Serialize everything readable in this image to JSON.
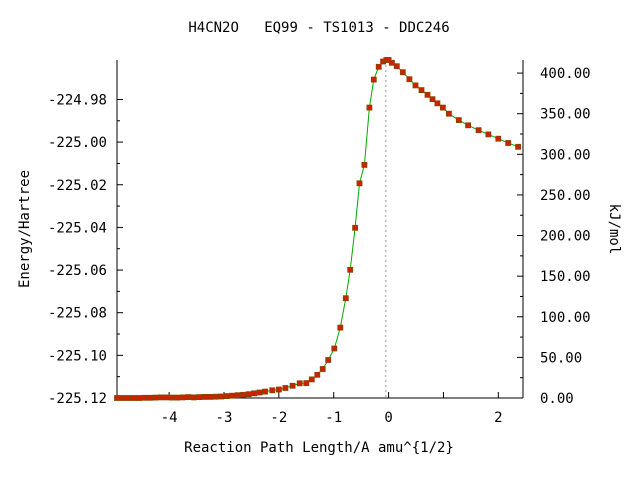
{
  "chart_data": {
    "type": "line",
    "title": "H4CN2O   EQ99 - TS1013 - DDC246",
    "xlabel": "Reaction Path Length/A amu^{1/2}",
    "ylabel": "Energy/Hartree",
    "y2label": "kJ/mol",
    "xlim": [
      -4.95,
      2.45
    ],
    "ylim": [
      -225.12,
      -224.9615
    ],
    "y2lim": [
      0,
      416.1
    ],
    "x_ticks": [
      -4,
      -3,
      -2,
      -1,
      0,
      2
    ],
    "x_tick_labels": [
      "-4",
      "-3",
      "-2",
      "-1",
      "0",
      "2"
    ],
    "x_minor_tick": 1,
    "y_ticks": [
      -224.98,
      -225.0,
      -225.02,
      -225.04,
      -225.06,
      -225.08,
      -225.1,
      -225.12
    ],
    "y_tick_labels": [
      "-224.98",
      "-225.00",
      "-225.02",
      "-225.04",
      "-225.06",
      "-225.08",
      "-225.10",
      "-225.12"
    ],
    "y2_ticks": [
      400,
      350,
      300,
      250,
      200,
      150,
      100,
      50,
      0
    ],
    "y2_tick_labels": [
      "400.00",
      "350.00",
      "300.00",
      "250.00",
      "200.00",
      "150.00",
      "100.00",
      "50.00",
      "0.00"
    ],
    "vline_x": -0.05,
    "grid": false,
    "line_color": "#00aa00",
    "marker_color": "#cc2200",
    "marker_edge": "#884400",
    "series": [
      {
        "x": [
          -4.95,
          -4.85,
          -4.75,
          -4.65,
          -4.55,
          -4.45,
          -4.35,
          -4.25,
          -4.15,
          -4.05,
          -3.95,
          -3.85,
          -3.75,
          -3.65,
          -3.55,
          -3.45,
          -3.35,
          -3.25,
          -3.15,
          -3.05,
          -2.95,
          -2.85,
          -2.75,
          -2.65,
          -2.55,
          -2.45,
          -2.35,
          -2.25,
          -2.12,
          -2.0,
          -1.88,
          -1.75,
          -1.62,
          -1.5,
          -1.4,
          -1.3,
          -1.2,
          -1.1,
          -0.99,
          -0.88,
          -0.78,
          -0.7,
          -0.61,
          -0.53,
          -0.44,
          -0.35,
          -0.27,
          -0.18,
          -0.1,
          -0.04,
          0.0,
          0.06,
          0.15,
          0.26,
          0.38,
          0.49,
          0.6,
          0.71,
          0.8,
          0.89,
          0.99,
          1.1,
          1.28,
          1.45,
          1.64,
          1.82,
          2.0,
          2.18,
          2.36
        ],
        "y": [
          -225.12,
          -225.12,
          -225.12,
          -225.12,
          -225.12,
          -225.1199,
          -225.1199,
          -225.1198,
          -225.1197,
          -225.1197,
          -225.1198,
          -225.1198,
          -225.1197,
          -225.1196,
          -225.1197,
          -225.1196,
          -225.1195,
          -225.1195,
          -225.1194,
          -225.1193,
          -225.1191,
          -225.1189,
          -225.1187,
          -225.1185,
          -225.1182,
          -225.1178,
          -225.1174,
          -225.117,
          -225.1164,
          -225.116,
          -225.1153,
          -225.1143,
          -225.1131,
          -225.113,
          -225.1113,
          -225.1091,
          -225.1064,
          -225.1022,
          -225.0968,
          -225.087,
          -225.0732,
          -225.0599,
          -225.0402,
          -225.0193,
          -225.0107,
          -224.9838,
          -224.9707,
          -224.9647,
          -224.9622,
          -224.9615,
          -224.9615,
          -224.9628,
          -224.9644,
          -224.9672,
          -224.9705,
          -224.9734,
          -224.9756,
          -224.9778,
          -224.9799,
          -224.9818,
          -224.9838,
          -224.9867,
          -224.9897,
          -224.9921,
          -224.9944,
          -224.9964,
          -224.9984,
          -225.0004,
          -225.0022
        ]
      }
    ]
  }
}
